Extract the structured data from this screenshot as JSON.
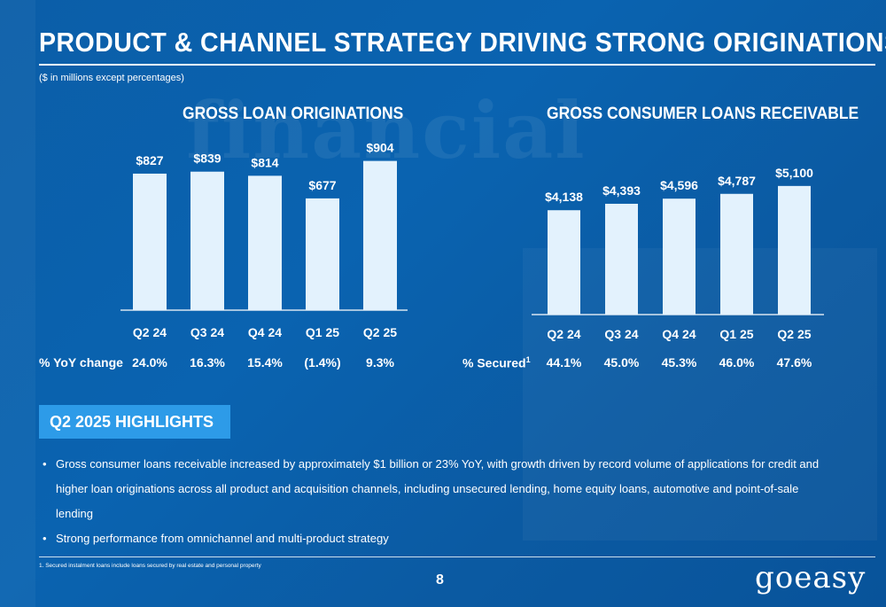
{
  "title": "PRODUCT & CHANNEL STRATEGY DRIVING STRONG ORIGINATIONS",
  "subtitle": "($ in millions except percentages)",
  "background_word": "financial",
  "colors": {
    "background": "#0b5ea8",
    "bar": "#e3f2fd",
    "highlight_box": "#2d9be8",
    "text": "#ffffff"
  },
  "chart_data": [
    {
      "type": "bar",
      "title": "GROSS LOAN ORIGINATIONS",
      "categories": [
        "Q2 24",
        "Q3 24",
        "Q4 24",
        "Q1 25",
        "Q2 25"
      ],
      "values": [
        827,
        839,
        814,
        677,
        904
      ],
      "value_labels": [
        "$827",
        "$839",
        "$814",
        "$677",
        "$904"
      ],
      "ylim": [
        0,
        1020
      ],
      "grid": false,
      "row_label": "% YoY change",
      "row_values": [
        "24.0%",
        "16.3%",
        "15.4%",
        "(1.4%)",
        "9.3%"
      ]
    },
    {
      "type": "bar",
      "title": "GROSS CONSUMER LOANS RECEIVABLE",
      "categories": [
        "Q2 24",
        "Q3 24",
        "Q4 24",
        "Q1 25",
        "Q2 25"
      ],
      "values": [
        4138,
        4393,
        4596,
        4787,
        5100
      ],
      "value_labels": [
        "$4,138",
        "$4,393",
        "$4,596",
        "$4,787",
        "$5,100"
      ],
      "ylim": [
        0,
        6500
      ],
      "grid": false,
      "row_label": "% Secured",
      "row_label_sup": "1",
      "row_values": [
        "44.1%",
        "45.0%",
        "45.3%",
        "46.0%",
        "47.6%"
      ]
    }
  ],
  "highlights": {
    "heading": "Q2 2025 HIGHLIGHTS",
    "bullets": [
      "Gross consumer loans receivable increased by approximately $1 billion or 23% YoY, with growth driven by record volume of applications for credit and higher loan originations across all product and acquisition channels, including unsecured lending, home equity loans, automotive and point-of-sale lending",
      "Strong performance from omnichannel and multi-product strategy"
    ]
  },
  "footnote": "1.  Secured instalment loans include loans secured by real estate and personal property",
  "page_number": "8",
  "logo_text": "goeasy"
}
